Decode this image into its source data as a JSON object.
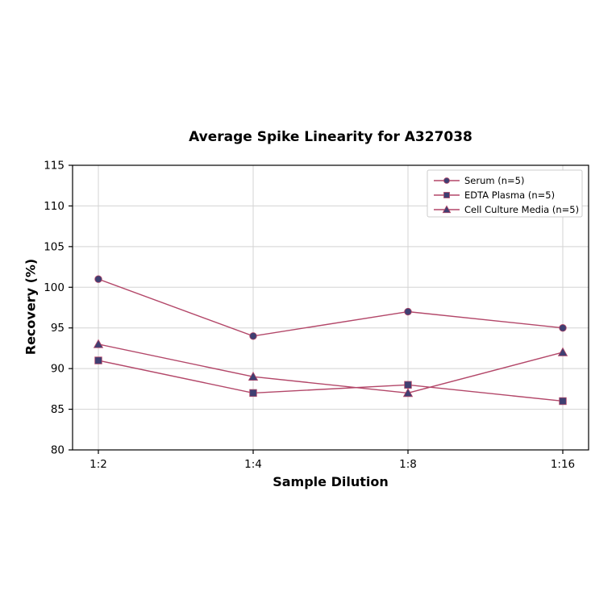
{
  "chart_data": {
    "type": "line",
    "title": "Average Spike Linearity for A327038",
    "xlabel": "Sample Dilution",
    "ylabel": "Recovery (%)",
    "categories": [
      "1:2",
      "1:4",
      "1:8",
      "1:16"
    ],
    "series": [
      {
        "name": "Serum (n=5)",
        "marker": "circle",
        "values": [
          101,
          94,
          97,
          95
        ]
      },
      {
        "name": "EDTA Plasma (n=5)",
        "marker": "square",
        "values": [
          91,
          87,
          88,
          86
        ]
      },
      {
        "name": "Cell Culture Media (n=5)",
        "marker": "triangle",
        "values": [
          93,
          89,
          87,
          92
        ]
      }
    ],
    "ylim": [
      80,
      115
    ],
    "yticks": [
      80,
      85,
      90,
      95,
      100,
      105,
      110,
      115
    ],
    "grid": true,
    "legend_position": "upper right",
    "colors": {
      "line": "#b34769",
      "marker_fill": "#3f3f72",
      "grid": "#d3d3d3",
      "axis": "#000000",
      "legend_border": "#cccccc",
      "tick_text": "#000000"
    }
  }
}
